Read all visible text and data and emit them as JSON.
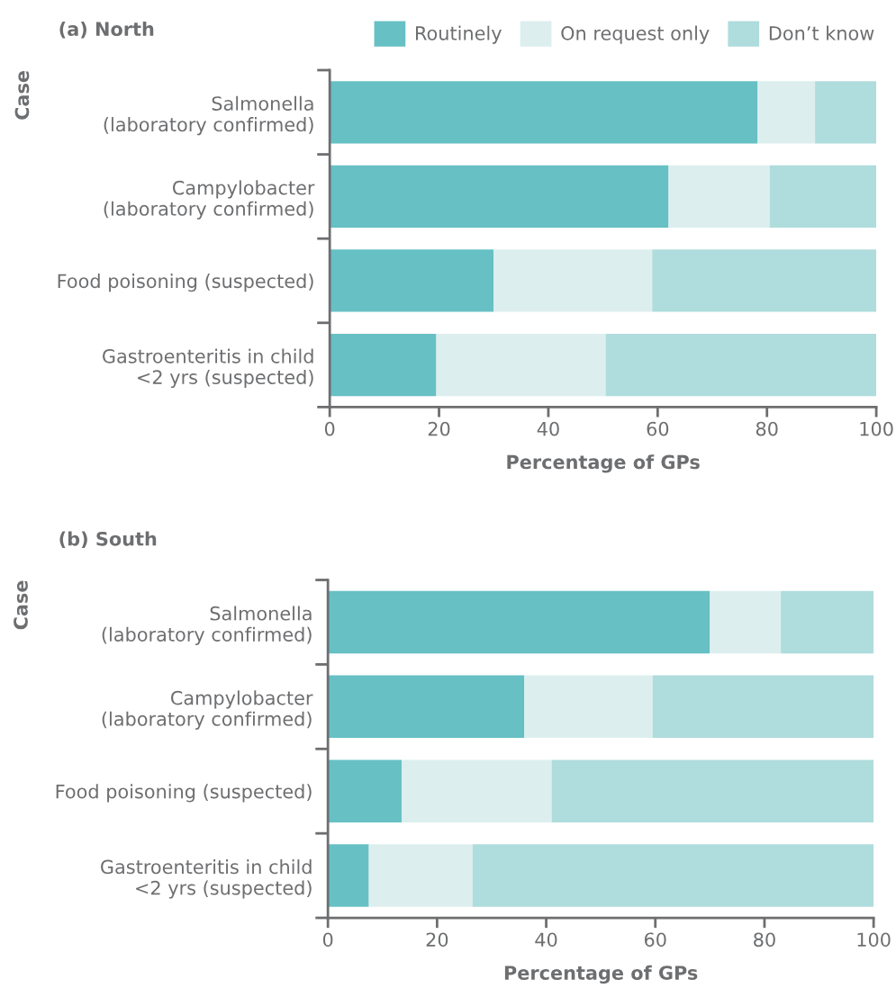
{
  "chart_data": [
    {
      "type": "bar",
      "title": "(a) North",
      "orientation": "horizontal",
      "stacked": true,
      "ylabel": "Case",
      "xlabel": "Percentage of GPs",
      "legend": "top right",
      "grid": false,
      "categories": [
        "Salmonella\n(laboratory confirmed)",
        "Campylobacter\n(laboratory confirmed)",
        "Food poisoning (suspected)",
        "Gastroenteritis in child\n<2 yrs (suspected)"
      ],
      "xlim": [
        0,
        100
      ],
      "xticks": [
        0,
        20,
        40,
        60,
        80,
        100
      ],
      "series": [
        {
          "name": "Routinely",
          "color": "#66c0c4",
          "values": [
            78.3,
            62,
            30,
            19.5
          ]
        },
        {
          "name": "On request only",
          "color": "#dcefee",
          "values": [
            10.5,
            18.5,
            29,
            31
          ]
        },
        {
          "name": "Don’t know",
          "color": "#afdcdc",
          "values": [
            11.2,
            19.5,
            41,
            49.5
          ]
        }
      ]
    },
    {
      "type": "bar",
      "title": "(b) South",
      "orientation": "horizontal",
      "stacked": true,
      "ylabel": "Case",
      "xlabel": "Percentage of GPs",
      "grid": false,
      "categories": [
        "Salmonella\n(laboratory confirmed)",
        "Campylobacter\n(laboratory confirmed)",
        "Food poisoning (suspected)",
        "Gastroenteritis in child\n<2 yrs (suspected)"
      ],
      "xlim": [
        0,
        100
      ],
      "xticks": [
        0,
        20,
        40,
        60,
        80,
        100
      ],
      "series": [
        {
          "color": "#66c0c4",
          "values": [
            70,
            36,
            13.5,
            7.5
          ]
        },
        {
          "color": "#dcefee",
          "values": [
            13,
            23.5,
            27.5,
            19
          ]
        },
        {
          "color": "#afdcdc",
          "values": [
            17,
            40.5,
            59,
            73.5
          ]
        }
      ]
    }
  ]
}
